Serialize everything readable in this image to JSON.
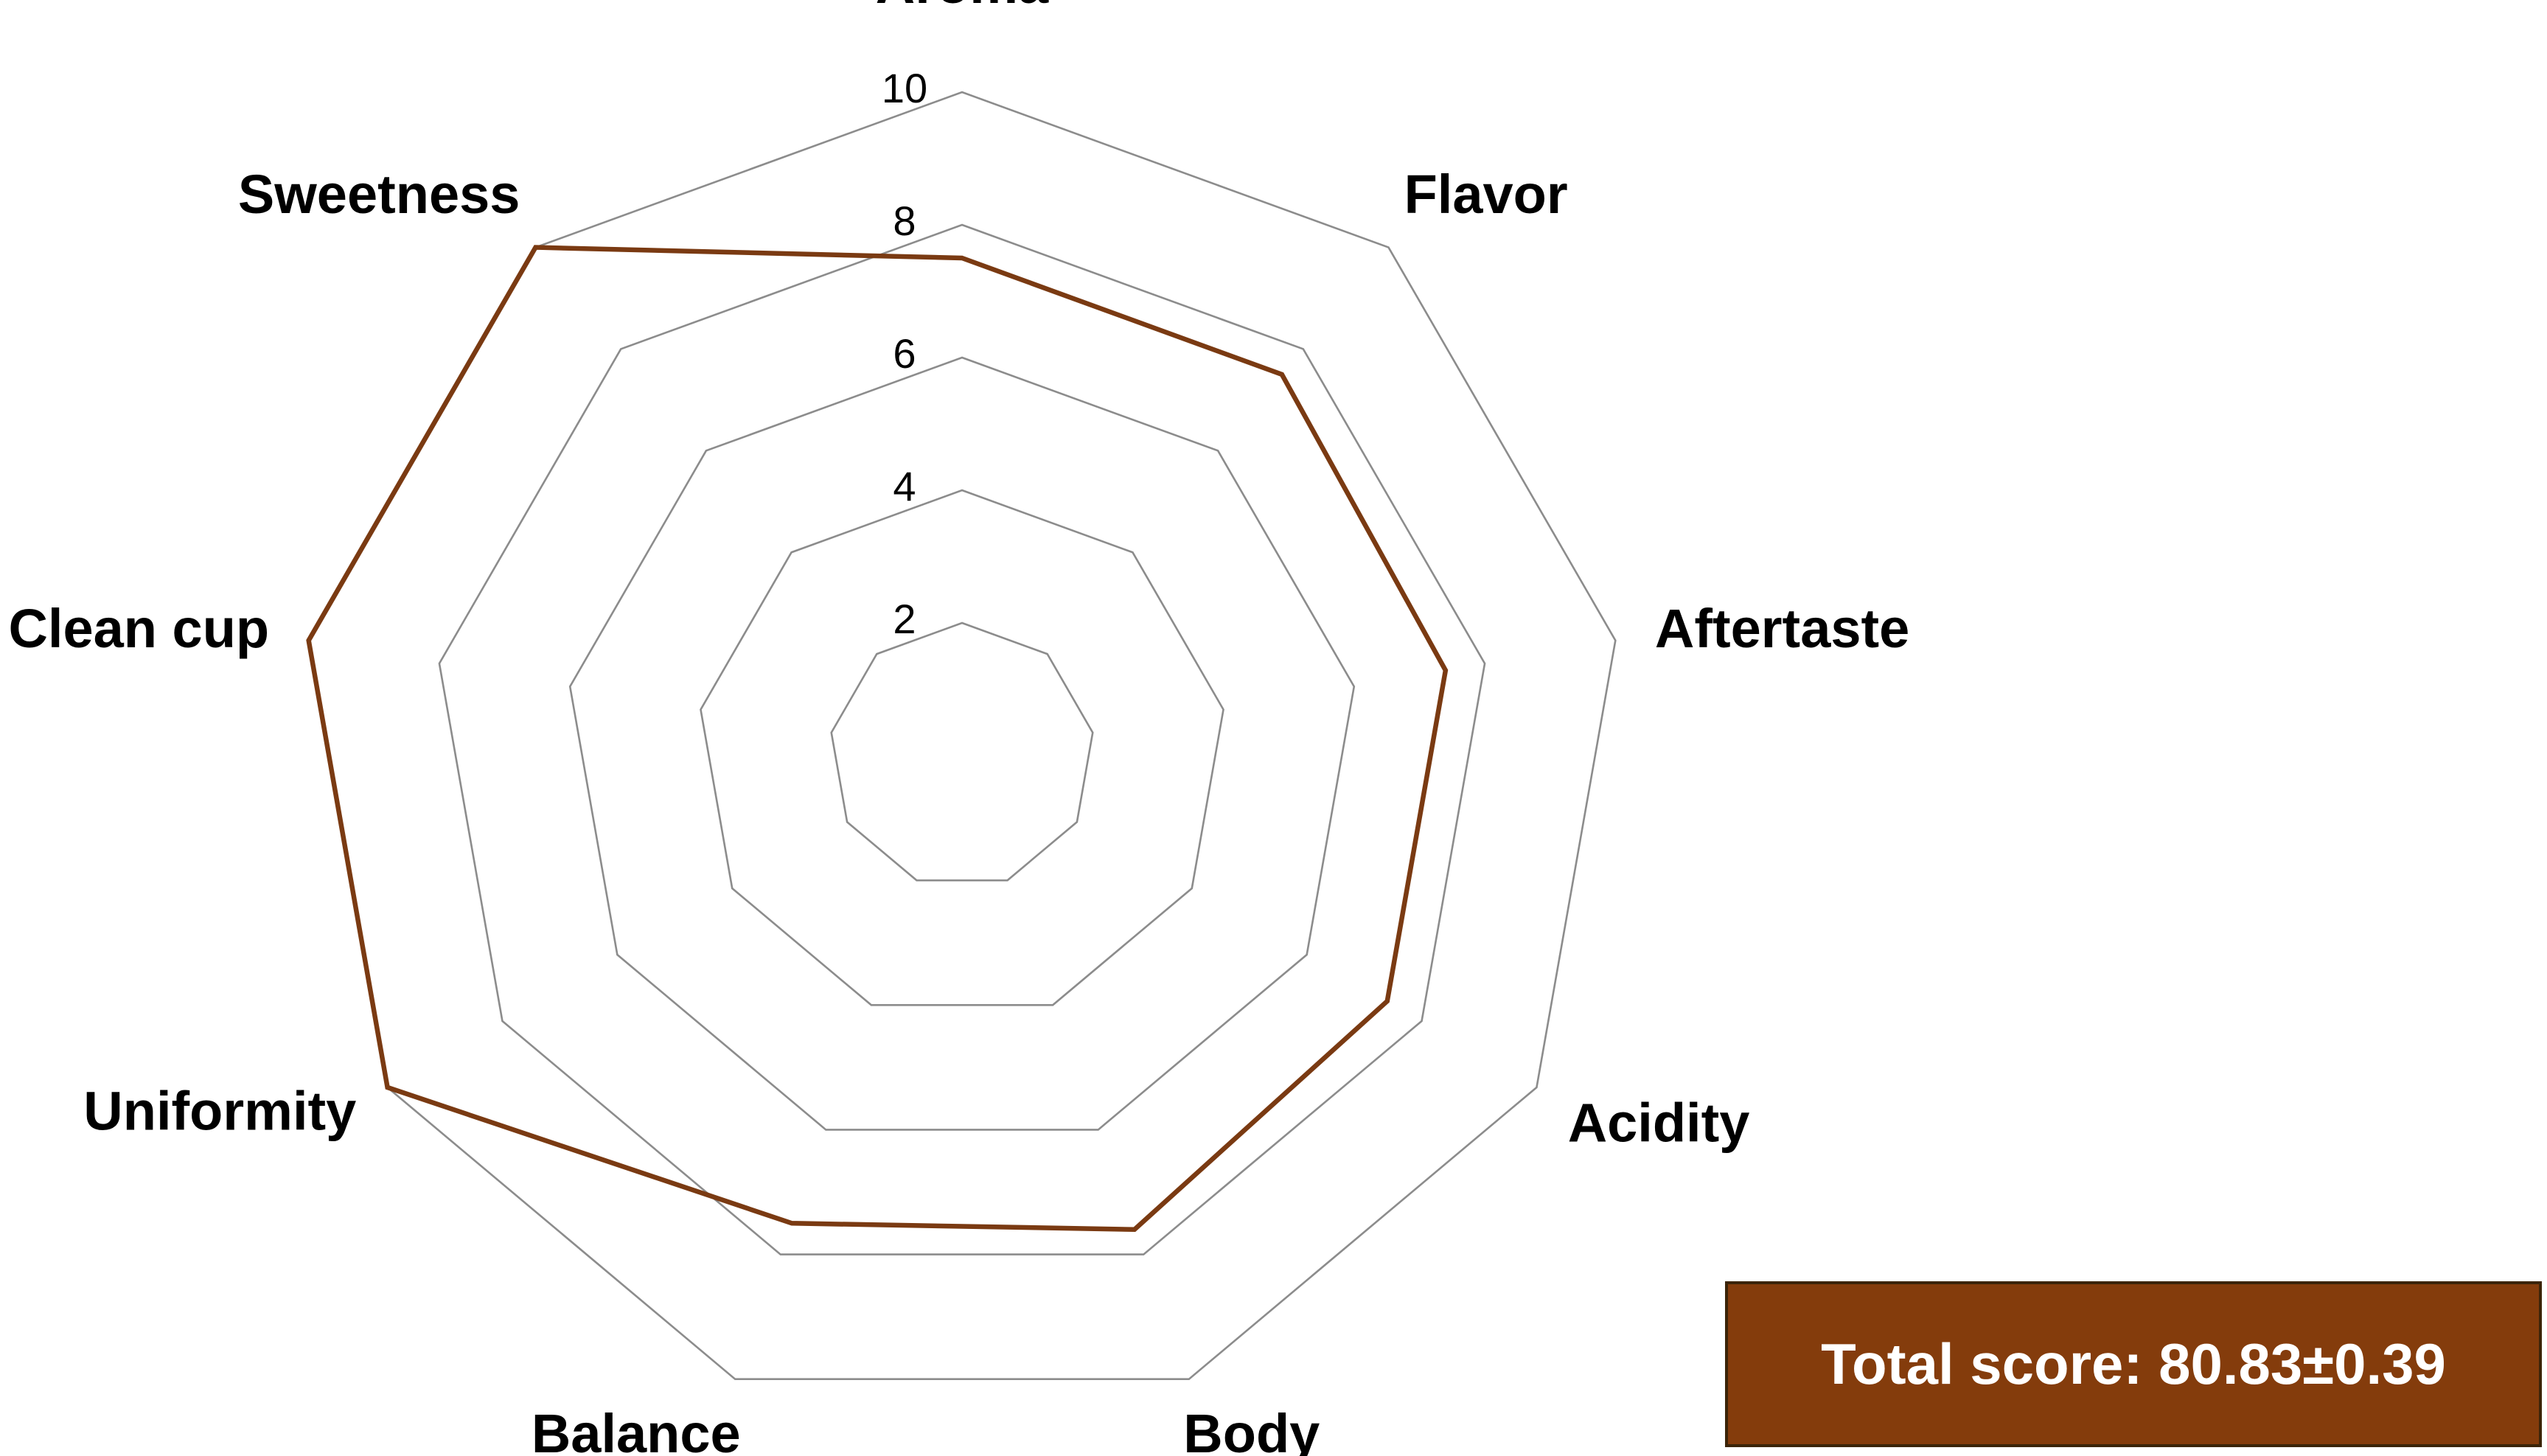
{
  "chart_data": {
    "type": "radar",
    "categories": [
      "Aroma",
      "Flavor",
      "Aftertaste",
      "Acidity",
      "Body",
      "Balance",
      "Uniformity",
      "Clean cup",
      "Sweetness"
    ],
    "series": [
      {
        "values": [
          7.5,
          7.5,
          7.4,
          7.4,
          7.6,
          7.5,
          10,
          10,
          10
        ],
        "color": "#7a3a12"
      }
    ],
    "rlim": [
      0,
      10
    ],
    "ticks": [
      2,
      4,
      6,
      8,
      10
    ],
    "tick_labels": [
      "2",
      "4",
      "6",
      "8",
      "10"
    ],
    "grid": true,
    "grid_color": "#8c8c8c"
  },
  "score_box": {
    "label": "Total score: 80.83±0.39",
    "background": "#843c0c"
  }
}
